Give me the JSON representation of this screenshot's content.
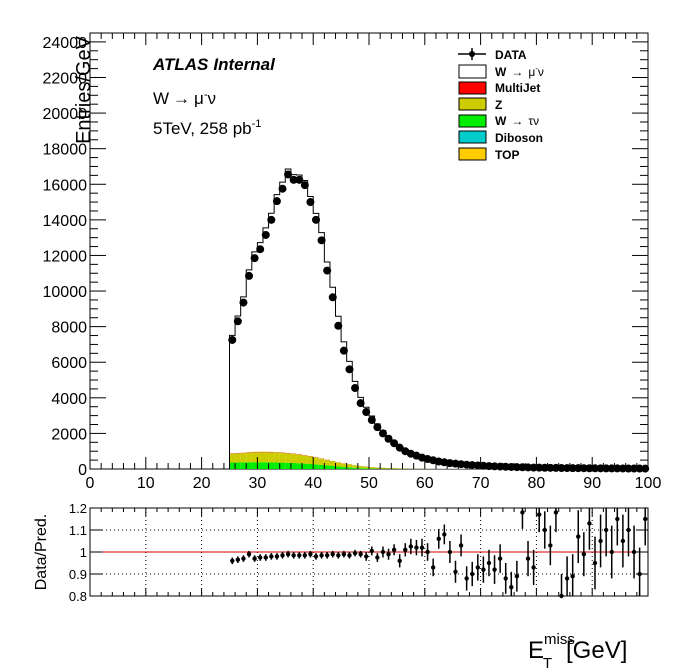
{
  "figure": {
    "ylabel": "Entries/GeV",
    "xlabel": "E",
    "xlabel_sup": "miss",
    "xlabel_sub": "T",
    "xlabel_unit": "[GeV]",
    "ratio_ylabel": "Data/Pred.",
    "atlas": "ATLAS",
    "internal": "Internal",
    "channel_parts": [
      "W",
      "→",
      "μ",
      "-",
      "ν"
    ],
    "energy_text": "5TeV, 258 pb",
    "energy_sup": "-1"
  },
  "legend": [
    {
      "key": "data",
      "label": "DATA",
      "style": "marker"
    },
    {
      "key": "wmunu",
      "label_parts": [
        "W",
        "→",
        "μ",
        "-",
        "ν"
      ],
      "color": "#ffffff"
    },
    {
      "key": "multijet",
      "label": "MultiJet",
      "color": "#ff0000"
    },
    {
      "key": "z",
      "label": "Z",
      "color": "#cccc00"
    },
    {
      "key": "wtaunu",
      "label_parts": [
        "W",
        "→",
        "τν"
      ],
      "color": "#00ee00"
    },
    {
      "key": "diboson",
      "label": "Diboson",
      "color": "#00cccc"
    },
    {
      "key": "top",
      "label": "TOP",
      "color": "#ffcc00"
    }
  ],
  "chart_data": [
    {
      "type": "bar",
      "panel": "main",
      "xlim": [
        0,
        100
      ],
      "ylim": [
        0,
        24500
      ],
      "x_ticks": [
        0,
        10,
        20,
        30,
        40,
        50,
        60,
        70,
        80,
        90,
        100
      ],
      "y_ticks": [
        0,
        2000,
        4000,
        6000,
        8000,
        10000,
        12000,
        14000,
        16000,
        18000,
        20000,
        22000,
        24000
      ],
      "bin_edges": [
        25,
        26,
        27,
        28,
        29,
        30,
        31,
        32,
        33,
        34,
        35,
        36,
        37,
        38,
        39,
        40,
        41,
        42,
        43,
        44,
        45,
        46,
        47,
        48,
        49,
        50,
        51,
        52,
        53,
        54,
        55,
        56,
        57,
        58,
        59,
        60,
        61,
        62,
        63,
        64,
        65,
        66,
        67,
        68,
        69,
        70,
        71,
        72,
        73,
        74,
        75,
        76,
        77,
        78,
        79,
        80,
        81,
        82,
        83,
        84,
        85,
        86,
        87,
        88,
        89,
        90,
        91,
        92,
        93,
        94,
        95,
        96,
        97,
        98,
        99,
        100
      ],
      "data_values": [
        7250,
        8300,
        9350,
        10850,
        11850,
        12350,
        13150,
        14000,
        15050,
        15750,
        16550,
        16250,
        16250,
        15950,
        15000,
        14000,
        12850,
        11150,
        9650,
        8050,
        6650,
        5600,
        4550,
        3700,
        3200,
        2750,
        2350,
        2000,
        1700,
        1450,
        1200,
        1000,
        860,
        750,
        640,
        560,
        490,
        420,
        380,
        330,
        300,
        270,
        240,
        220,
        200,
        180,
        165,
        150,
        135,
        125,
        115,
        105,
        95,
        90,
        80,
        75,
        70,
        65,
        60,
        55,
        52,
        50,
        48,
        45,
        42,
        40,
        38,
        36,
        34,
        32,
        30,
        28,
        26,
        25,
        24
      ],
      "data_errors": [
        85,
        91,
        97,
        104,
        109,
        111,
        115,
        118,
        123,
        125,
        129,
        127,
        127,
        126,
        122,
        118,
        113,
        106,
        98,
        90,
        82,
        75,
        67,
        61,
        57,
        52,
        48,
        45,
        41,
        38,
        35,
        32,
        29,
        27,
        25,
        24,
        22,
        20,
        19,
        18,
        17,
        16,
        15,
        15,
        14,
        13,
        13,
        12,
        12,
        11,
        11,
        10,
        10,
        9,
        9,
        9,
        8,
        8,
        8,
        7,
        7,
        7,
        7,
        7,
        6,
        6,
        6,
        6,
        6,
        6,
        5,
        5,
        5,
        5,
        5
      ],
      "series": [
        {
          "name": "W → μ-ν",
          "values": [
            6620,
            7690,
            8740,
            10230,
            11230,
            11740,
            12570,
            13400,
            14460,
            15180,
            15950,
            15660,
            15680,
            15420,
            14570,
            13690,
            12680,
            11100,
            9750,
            8190,
            6820,
            5770,
            4700,
            3840,
            3320,
            2860,
            2440,
            2080,
            1770,
            1500,
            1240,
            1030,
            880,
            760,
            650,
            570,
            500,
            425,
            385,
            335,
            304,
            275,
            244,
            224,
            203,
            183,
            168,
            153,
            138,
            128,
            118,
            108,
            98,
            93,
            83,
            78,
            73,
            68,
            63,
            58,
            55,
            53,
            51,
            48,
            45,
            43,
            41,
            39,
            37,
            35,
            33,
            31,
            29,
            28,
            27
          ]
        },
        {
          "name": "MultiJet",
          "values": [
            20,
            20,
            20,
            20,
            20,
            20,
            20,
            20,
            20,
            20,
            20,
            20,
            20,
            20,
            20,
            15,
            15,
            15,
            10,
            10,
            10,
            10,
            5,
            5,
            5,
            5,
            5,
            5,
            5,
            5,
            0,
            0,
            0,
            0,
            0,
            0,
            0,
            0,
            0,
            0,
            0,
            0,
            0,
            0,
            0,
            0,
            0,
            0,
            0,
            0,
            0,
            0,
            0,
            0,
            0,
            0,
            0,
            0,
            0,
            0,
            0,
            0,
            0,
            0,
            0,
            0,
            0,
            0,
            0,
            0,
            0,
            0,
            0,
            0,
            0
          ]
        },
        {
          "name": "Z",
          "values": [
            480,
            500,
            520,
            540,
            550,
            560,
            560,
            560,
            550,
            540,
            520,
            500,
            480,
            450,
            420,
            380,
            340,
            300,
            260,
            220,
            190,
            160,
            130,
            110,
            90,
            70,
            55,
            45,
            35,
            30,
            20,
            15,
            10,
            8,
            6,
            5,
            4,
            3,
            2,
            2,
            1,
            1,
            1,
            0,
            0,
            0,
            0,
            0,
            0,
            0,
            0,
            0,
            0,
            0,
            0,
            0,
            0,
            0,
            0,
            0,
            0,
            0,
            0,
            0,
            0,
            0,
            0,
            0,
            0,
            0,
            0,
            0,
            0,
            0,
            0
          ]
        },
        {
          "name": "W → τν",
          "values": [
            370,
            370,
            370,
            380,
            380,
            380,
            380,
            370,
            370,
            360,
            350,
            340,
            320,
            300,
            280,
            260,
            230,
            200,
            170,
            140,
            110,
            90,
            70,
            50,
            40,
            30,
            20,
            15,
            10,
            8,
            5,
            3,
            2,
            1,
            0,
            0,
            0,
            0,
            0,
            0,
            0,
            0,
            0,
            0,
            0,
            0,
            0,
            0,
            0,
            0,
            0,
            0,
            0,
            0,
            0,
            0,
            0,
            0,
            0,
            0,
            0,
            0,
            0,
            0,
            0,
            0,
            0,
            0,
            0,
            0,
            0,
            0,
            0,
            0,
            0
          ]
        },
        {
          "name": "Diboson",
          "values": [
            5,
            5,
            5,
            5,
            5,
            5,
            5,
            5,
            5,
            5,
            5,
            5,
            5,
            5,
            5,
            5,
            5,
            5,
            5,
            5,
            5,
            5,
            5,
            5,
            5,
            5,
            5,
            5,
            5,
            5,
            3,
            3,
            3,
            3,
            3,
            2,
            2,
            2,
            2,
            2,
            1,
            1,
            1,
            1,
            1,
            1,
            1,
            1,
            1,
            1,
            1,
            1,
            1,
            1,
            1,
            1,
            1,
            1,
            1,
            1,
            1,
            1,
            1,
            1,
            1,
            1,
            1,
            1,
            1,
            1,
            1,
            1,
            1,
            1,
            1
          ]
        },
        {
          "name": "TOP",
          "values": [
            15,
            15,
            15,
            15,
            15,
            15,
            15,
            15,
            15,
            15,
            15,
            15,
            15,
            15,
            15,
            15,
            15,
            15,
            15,
            15,
            12,
            12,
            12,
            12,
            12,
            10,
            10,
            10,
            10,
            10,
            8,
            8,
            8,
            8,
            8,
            6,
            6,
            6,
            6,
            6,
            5,
            5,
            5,
            5,
            5,
            4,
            4,
            4,
            4,
            4,
            3,
            3,
            3,
            3,
            3,
            3,
            3,
            3,
            3,
            3,
            2,
            2,
            2,
            2,
            2,
            2,
            2,
            2,
            2,
            2,
            1,
            1,
            1,
            1,
            1
          ]
        }
      ]
    },
    {
      "type": "scatter",
      "panel": "ratio",
      "xlim": [
        0,
        100
      ],
      "ylim": [
        0.8,
        1.2
      ],
      "y_ticks": [
        0.8,
        0.9,
        1,
        1.1,
        1.2
      ],
      "y_tick_labels": [
        "0.8",
        "0.9",
        "1",
        "1.1",
        "1.2"
      ],
      "reference_line": 1,
      "x": [
        25.5,
        26.5,
        27.5,
        28.5,
        29.5,
        30.5,
        31.5,
        32.5,
        33.5,
        34.5,
        35.5,
        36.5,
        37.5,
        38.5,
        39.5,
        40.5,
        41.5,
        42.5,
        43.5,
        44.5,
        45.5,
        46.5,
        47.5,
        48.5,
        49.5,
        50.5,
        51.5,
        52.5,
        53.5,
        54.5,
        55.5,
        56.5,
        57.5,
        58.5,
        59.5,
        60.5,
        61.5,
        62.5,
        63.5,
        64.5,
        65.5,
        66.5,
        67.5,
        68.5,
        69.5,
        70.5,
        71.5,
        72.5,
        73.5,
        74.5,
        75.5,
        76.5,
        77.5,
        78.5,
        79.5,
        80.5,
        81.5,
        82.5,
        83.5,
        84.5,
        85.5,
        86.5,
        87.5,
        88.5,
        89.5,
        90.5,
        91.5,
        92.5,
        93.5,
        94.5,
        95.5,
        96.5,
        97.5,
        98.5,
        99.5
      ],
      "y": [
        0.96,
        0.965,
        0.97,
        0.99,
        0.97,
        0.975,
        0.975,
        0.98,
        0.98,
        0.985,
        0.99,
        0.985,
        0.985,
        0.985,
        0.99,
        0.98,
        0.985,
        0.985,
        0.99,
        0.985,
        0.99,
        0.985,
        0.995,
        0.99,
        0.98,
        1.005,
        0.975,
        1.0,
        0.99,
        1.01,
        0.96,
        1.01,
        1.025,
        1.02,
        1.02,
        1.0,
        0.93,
        1.06,
        1.08,
        1.0,
        0.91,
        1.03,
        0.88,
        0.9,
        0.93,
        0.92,
        0.95,
        0.92,
        0.97,
        0.88,
        0.84,
        0.89,
        1.18,
        0.97,
        0.93,
        1.17,
        1.1,
        1.03,
        1.18,
        0.8,
        0.88,
        0.89,
        1.07,
        0.99,
        1.13,
        0.95,
        1.05,
        1.1,
        1.0,
        1.15,
        1.05,
        1.1,
        1.0,
        0.9,
        1.15
      ],
      "yerr": [
        0.015,
        0.015,
        0.015,
        0.015,
        0.015,
        0.015,
        0.015,
        0.015,
        0.015,
        0.015,
        0.015,
        0.015,
        0.015,
        0.015,
        0.015,
        0.015,
        0.015,
        0.015,
        0.015,
        0.015,
        0.015,
        0.015,
        0.015,
        0.015,
        0.02,
        0.02,
        0.02,
        0.025,
        0.025,
        0.025,
        0.03,
        0.03,
        0.035,
        0.035,
        0.04,
        0.04,
        0.04,
        0.045,
        0.045,
        0.05,
        0.05,
        0.05,
        0.055,
        0.055,
        0.06,
        0.06,
        0.06,
        0.065,
        0.065,
        0.07,
        0.07,
        0.07,
        0.075,
        0.08,
        0.08,
        0.08,
        0.085,
        0.09,
        0.09,
        0.1,
        0.1,
        0.1,
        0.12,
        0.1,
        0.12,
        0.12,
        0.12,
        0.12,
        0.12,
        0.12,
        0.12,
        0.12,
        0.12,
        0.12,
        0.12
      ]
    }
  ]
}
